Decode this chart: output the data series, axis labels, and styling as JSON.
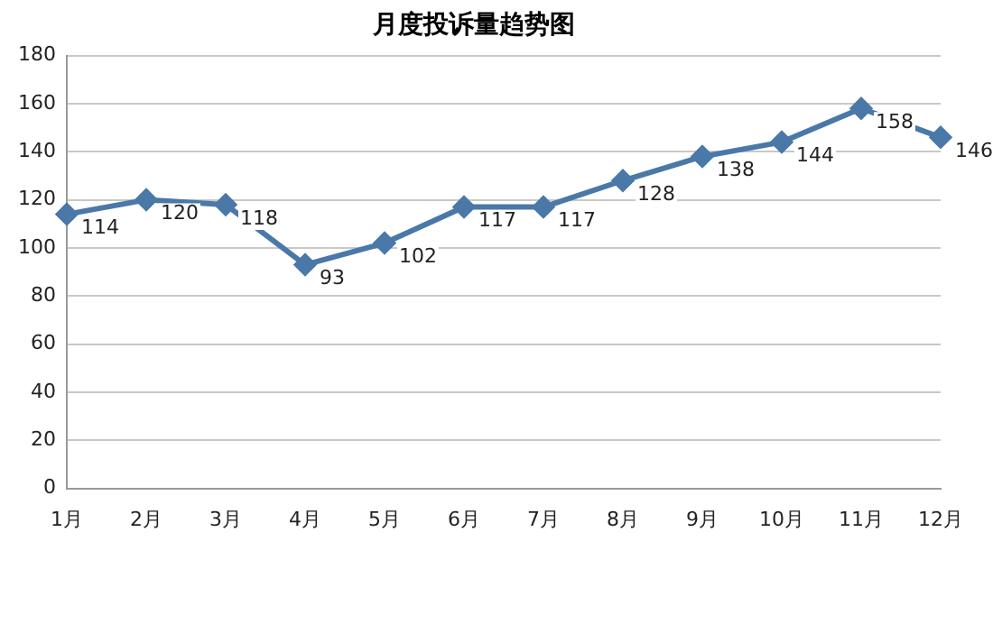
{
  "chart_data": {
    "type": "line",
    "title": "月度投诉量趋势图",
    "categories": [
      "1月",
      "2月",
      "3月",
      "4月",
      "5月",
      "6月",
      "7月",
      "8月",
      "9月",
      "10月",
      "11月",
      "12月"
    ],
    "values": [
      114,
      120,
      118,
      93,
      102,
      117,
      117,
      128,
      138,
      144,
      158,
      146
    ],
    "color": "#4a78a8",
    "ylim": [
      0,
      180
    ],
    "yticks": [
      0,
      20,
      40,
      60,
      80,
      100,
      120,
      140,
      160,
      180
    ],
    "grid": "y",
    "marker": "diamond",
    "data_labels": true
  }
}
